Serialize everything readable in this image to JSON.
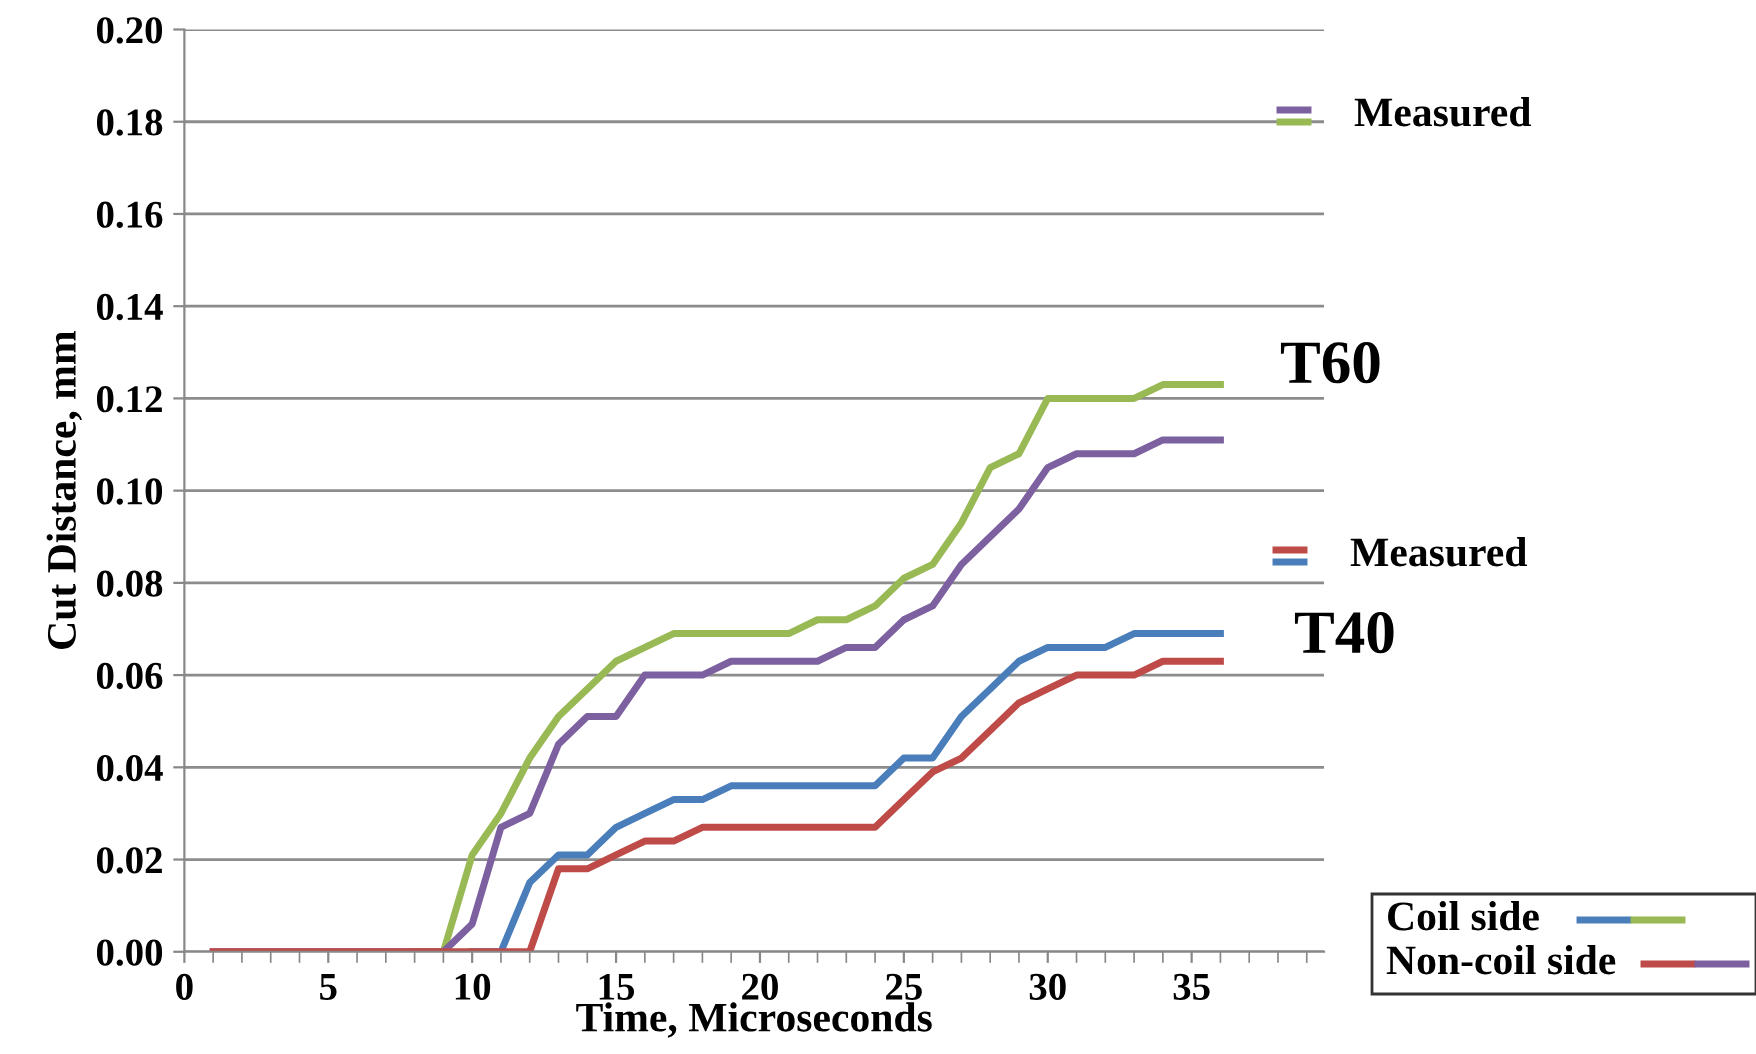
{
  "chart_data": {
    "type": "line",
    "xlabel": "Time, Microseconds",
    "ylabel": "Cut Distance, mm",
    "x": [
      1,
      2,
      3,
      4,
      5,
      6,
      7,
      8,
      9,
      10,
      11,
      12,
      13,
      14,
      15,
      16,
      17,
      18,
      19,
      20,
      21,
      22,
      23,
      24,
      25,
      26,
      27,
      28,
      29,
      30,
      31,
      32,
      33,
      34,
      35,
      36
    ],
    "series": [
      {
        "color": "#98b954",
        "values": [
          null,
          null,
          null,
          null,
          null,
          null,
          null,
          0,
          0,
          0.021,
          0.03,
          0.042,
          0.051,
          0.057,
          0.063,
          0.066,
          0.069,
          0.069,
          0.069,
          0.069,
          0.069,
          0.072,
          0.072,
          0.075,
          0.081,
          0.084,
          0.093,
          0.105,
          0.108,
          0.12,
          0.12,
          0.12,
          0.12,
          0.123,
          0.123,
          0.123
        ]
      },
      {
        "color": "#7d60a0",
        "values": [
          0,
          0,
          0,
          0,
          0,
          0,
          0,
          0,
          0,
          0.006,
          0.027,
          0.03,
          0.045,
          0.051,
          0.051,
          0.06,
          0.06,
          0.06,
          0.063,
          0.063,
          0.063,
          0.063,
          0.066,
          0.066,
          0.072,
          0.075,
          0.084,
          0.09,
          0.096,
          0.105,
          0.108,
          0.108,
          0.108,
          0.111,
          0.111,
          0.111
        ]
      },
      {
        "color": "#4a7ebb",
        "values": [
          null,
          null,
          null,
          null,
          null,
          null,
          null,
          null,
          null,
          0,
          0,
          0.015,
          0.021,
          0.021,
          0.027,
          0.03,
          0.033,
          0.033,
          0.036,
          0.036,
          0.036,
          0.036,
          0.036,
          0.036,
          0.042,
          0.042,
          0.051,
          0.057,
          0.063,
          0.066,
          0.066,
          0.066,
          0.069,
          0.069,
          0.069,
          0.069
        ]
      },
      {
        "color": "#be4b48",
        "values": [
          0,
          0,
          0,
          0,
          0,
          0,
          0,
          0,
          0,
          0,
          0,
          0,
          0.018,
          0.018,
          0.021,
          0.024,
          0.024,
          0.027,
          0.027,
          0.027,
          0.027,
          0.027,
          0.027,
          0.027,
          0.033,
          0.039,
          0.042,
          0.048,
          0.054,
          0.057,
          0.06,
          0.06,
          0.06,
          0.063,
          0.063,
          0.063
        ]
      }
    ],
    "annotations": [
      "Measured",
      "T60",
      "Measured",
      "T40",
      "Coil side",
      "Non-coil side"
    ],
    "xlim": [
      0,
      39.6
    ],
    "xticks": [
      0,
      5,
      10,
      15,
      20,
      25,
      30,
      35
    ],
    "ylim": [
      0,
      0.2
    ],
    "yticks": [
      {
        "value": 0,
        "label": "0.00"
      },
      {
        "value": 0.02,
        "label": "0.02"
      },
      {
        "value": 0.04,
        "label": "0.04"
      },
      {
        "value": 0.06,
        "label": "0.06"
      },
      {
        "value": 0.08,
        "label": "0.08"
      },
      {
        "value": 0.1,
        "label": "0.10"
      },
      {
        "value": 0.12,
        "label": "0.12"
      },
      {
        "value": 0.14,
        "label": "0.14"
      },
      {
        "value": 0.16,
        "label": "0.16"
      },
      {
        "value": 0.18,
        "label": "0.18"
      },
      {
        "value": 0.2,
        "label": "0.20"
      }
    ],
    "grid": "y",
    "marker": "none",
    "line_style": "solid"
  }
}
